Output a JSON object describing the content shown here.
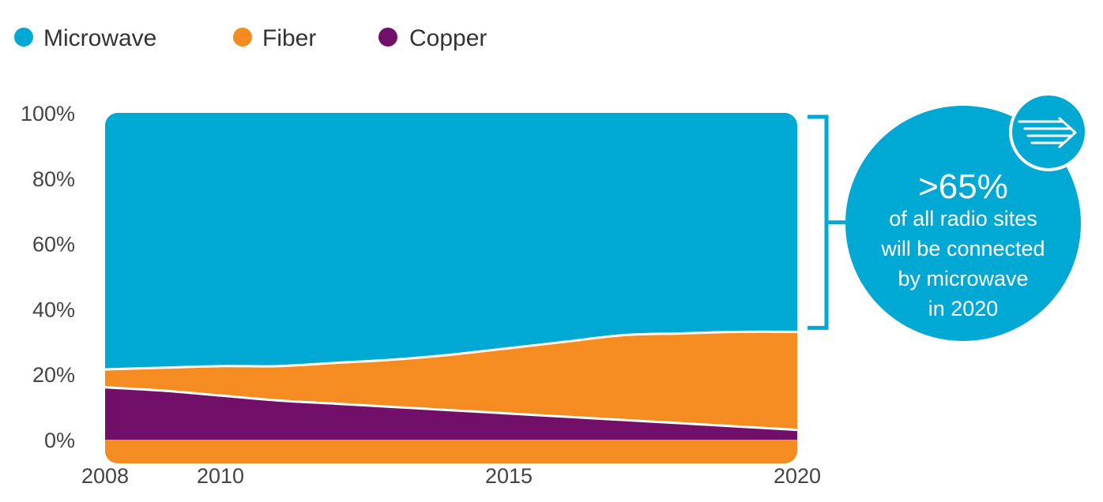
{
  "chart_data": {
    "type": "area",
    "stacked": true,
    "x_ticks": [
      2008,
      2010,
      2015,
      2020
    ],
    "y_ticks": [
      "0%",
      "20%",
      "40%",
      "60%",
      "80%",
      "100%"
    ],
    "ylim": [
      0,
      100
    ],
    "xlim": [
      2008,
      2020
    ],
    "x": [
      2008,
      2009,
      2010,
      2011,
      2012,
      2013,
      2014,
      2015,
      2016,
      2017,
      2018,
      2019,
      2020
    ],
    "series": [
      {
        "name": "Copper",
        "color": "#720f68",
        "values": [
          16,
          15,
          13.5,
          12,
          11,
          10,
          9,
          8,
          7,
          6,
          5,
          4,
          3
        ]
      },
      {
        "name": "Fiber",
        "color": "#f48c21",
        "values": [
          5.5,
          7,
          9,
          10.5,
          12.5,
          14.5,
          17,
          20,
          23,
          26,
          27.5,
          29,
          30
        ]
      },
      {
        "name": "Microwave",
        "color": "#00a9d3",
        "values": [
          78.5,
          78,
          77.5,
          77.5,
          76.5,
          75.5,
          74,
          72,
          70,
          68,
          67.5,
          67,
          67
        ]
      }
    ],
    "legend": {
      "placement": "top-left",
      "order": [
        "Microwave",
        "Fiber",
        "Copper"
      ]
    },
    "annotation": {
      "headline": ">65%",
      "lines": [
        "of all radio sites",
        "will be connected",
        "by microwave",
        "in 2020"
      ],
      "icon": "arrow-right-icon",
      "color": "#00a9d3"
    },
    "grid": false
  }
}
